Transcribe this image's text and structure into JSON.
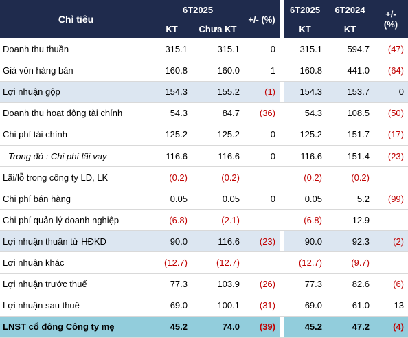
{
  "header": {
    "indicator_label": "Chỉ tiêu",
    "group1_label": "6T2025",
    "group2_period1": "6T2025",
    "group2_period2": "6T2024",
    "kt_label": "KT",
    "unaudited_label": "Chưa KT",
    "change_label": "+/- (%)"
  },
  "rows": [
    {
      "label": "Doanh thu thuần",
      "kt": "315.1",
      "unaudited": "315.1",
      "change1": "0",
      "y2025": "315.1",
      "y2024": "594.7",
      "change2": "(47)",
      "style": ""
    },
    {
      "label": "Giá vốn hàng bán",
      "kt": "160.8",
      "unaudited": "160.0",
      "change1": "1",
      "y2025": "160.8",
      "y2024": "441.0",
      "change2": "(64)",
      "style": ""
    },
    {
      "label": "Lợi nhuận gộp",
      "kt": "154.3",
      "unaudited": "155.2",
      "change1": "(1)",
      "y2025": "154.3",
      "y2024": "153.7",
      "change2": "0",
      "style": "hl"
    },
    {
      "label": "Doanh thu hoạt động tài chính",
      "kt": "54.3",
      "unaudited": "84.7",
      "change1": "(36)",
      "y2025": "54.3",
      "y2024": "108.5",
      "change2": "(50)",
      "style": ""
    },
    {
      "label": "Chi phí tài chính",
      "kt": "125.2",
      "unaudited": "125.2",
      "change1": "0",
      "y2025": "125.2",
      "y2024": "151.7",
      "change2": "(17)",
      "style": ""
    },
    {
      "label": "- Trong đó : Chi phí lãi vay",
      "kt": "116.6",
      "unaudited": "116.6",
      "change1": "0",
      "y2025": "116.6",
      "y2024": "151.4",
      "change2": "(23)",
      "style": "italic"
    },
    {
      "label": "Lãi/lỗ trong công ty LD, LK",
      "kt": "(0.2)",
      "unaudited": "(0.2)",
      "change1": "",
      "y2025": "(0.2)",
      "y2024": "(0.2)",
      "change2": "",
      "style": ""
    },
    {
      "label": "Chi phí bán hàng",
      "kt": "0.05",
      "unaudited": "0.05",
      "change1": "0",
      "y2025": "0.05",
      "y2024": "5.2",
      "change2": "(99)",
      "style": ""
    },
    {
      "label": "Chi phí quản lý doanh nghiệp",
      "kt": "(6.8)",
      "unaudited": "(2.1)",
      "change1": "",
      "y2025": "(6.8)",
      "y2024": "12.9",
      "change2": "",
      "style": ""
    },
    {
      "label": "Lợi nhuận thuần từ HĐKD",
      "kt": "90.0",
      "unaudited": "116.6",
      "change1": "(23)",
      "y2025": "90.0",
      "y2024": "92.3",
      "change2": "(2)",
      "style": "hl"
    },
    {
      "label": "Lợi nhuận khác",
      "kt": "(12.7)",
      "unaudited": "(12.7)",
      "change1": "",
      "y2025": "(12.7)",
      "y2024": "(9.7)",
      "change2": "",
      "style": ""
    },
    {
      "label": "Lợi nhuận trước thuế",
      "kt": "77.3",
      "unaudited": "103.9",
      "change1": "(26)",
      "y2025": "77.3",
      "y2024": "82.6",
      "change2": "(6)",
      "style": ""
    },
    {
      "label": "Lợi nhuận sau thuế",
      "kt": "69.0",
      "unaudited": "100.1",
      "change1": "(31)",
      "y2025": "69.0",
      "y2024": "61.0",
      "change2": "13",
      "style": ""
    },
    {
      "label": "LNST cổ đông Công ty mẹ",
      "kt": "45.2",
      "unaudited": "74.0",
      "change1": "(39)",
      "y2025": "45.2",
      "y2024": "47.2",
      "change2": "(4)",
      "style": "final"
    }
  ]
}
